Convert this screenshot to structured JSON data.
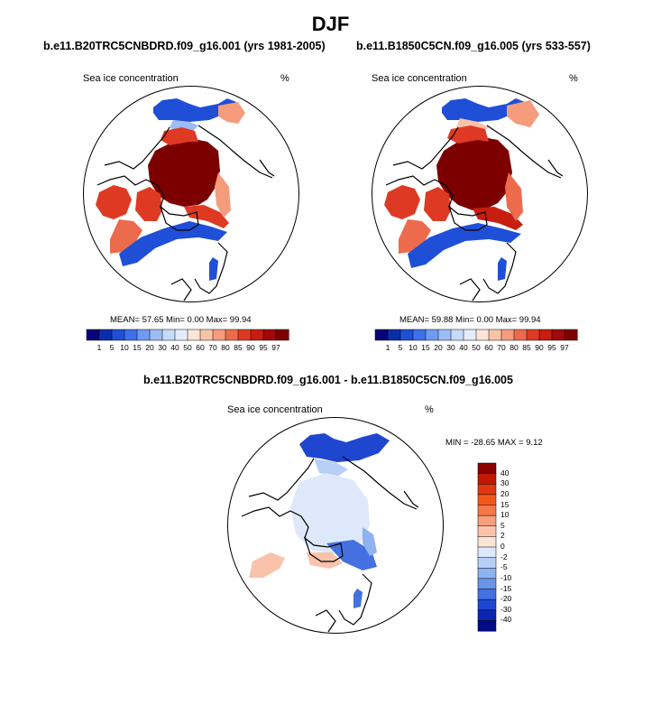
{
  "page": {
    "title": "DJF"
  },
  "panels": [
    {
      "title": "b.e11.B20TRC5CNBDRD.f09_g16.001 (yrs 1981-2005)",
      "variable": "Sea ice concentration",
      "units": "%",
      "stats": "MEAN=  57.65  Min=   0.00  Max=  99.94"
    },
    {
      "title": "b.e11.B1850C5CN.f09_g16.005 (yrs 533-557)",
      "variable": "Sea ice concentration",
      "units": "%",
      "stats": "MEAN=  59.88  Min=   0.00  Max=  99.94"
    },
    {
      "title": "b.e11.B20TRC5CNBDRD.f09_g16.001 - b.e11.B1850C5CN.f09_g16.005",
      "variable": "Sea ice concentration",
      "units": "%",
      "stats": "MIN = -28.65 MAX =   9.12"
    }
  ],
  "chart_data": [
    {
      "type": "heatmap",
      "projection": "north polar stereographic",
      "title": "b.e11.B20TRC5CNBDRD.f09_g16.001 (yrs 1981-2005)",
      "variable": "Sea ice concentration",
      "units": "%",
      "mean": 57.65,
      "min": 0.0,
      "max": 99.94,
      "colorbar_levels": [
        "1",
        "5",
        "10",
        "15",
        "20",
        "30",
        "40",
        "50",
        "60",
        "70",
        "80",
        "85",
        "90",
        "95",
        "97"
      ],
      "colorbar_colors": [
        "#08047a",
        "#0a2ea8",
        "#1f4fd6",
        "#3f70ea",
        "#6f9af2",
        "#9cbcf6",
        "#c6dafa",
        "#e3edfc",
        "#fde5d8",
        "#f9c3a8",
        "#f49c7c",
        "#ec6b4c",
        "#de3a23",
        "#c71e10",
        "#a10808",
        "#7d0000"
      ]
    },
    {
      "type": "heatmap",
      "projection": "north polar stereographic",
      "title": "b.e11.B1850C5CN.f09_g16.005 (yrs 533-557)",
      "variable": "Sea ice concentration",
      "units": "%",
      "mean": 59.88,
      "min": 0.0,
      "max": 99.94,
      "colorbar_levels": [
        "1",
        "5",
        "10",
        "15",
        "20",
        "30",
        "40",
        "50",
        "60",
        "70",
        "80",
        "85",
        "90",
        "95",
        "97"
      ],
      "colorbar_colors": [
        "#08047a",
        "#0a2ea8",
        "#1f4fd6",
        "#3f70ea",
        "#6f9af2",
        "#9cbcf6",
        "#c6dafa",
        "#e3edfc",
        "#fde5d8",
        "#f9c3a8",
        "#f49c7c",
        "#ec6b4c",
        "#de3a23",
        "#c71e10",
        "#a10808",
        "#7d0000"
      ]
    },
    {
      "type": "heatmap",
      "projection": "north polar stereographic",
      "title": "b.e11.B20TRC5CNBDRD.f09_g16.001 - b.e11.B1850C5CN.f09_g16.005",
      "variable": "Sea ice concentration (difference)",
      "units": "%",
      "min": -28.65,
      "max": 9.12,
      "colorbar_levels": [
        "40",
        "30",
        "20",
        "15",
        "10",
        "5",
        "2",
        "0",
        "-2",
        "-5",
        "-10",
        "-15",
        "-20",
        "-30",
        "-40"
      ],
      "colorbar_colors": [
        "#8b0000",
        "#c01a06",
        "#e0380f",
        "#f2581d",
        "#f5784a",
        "#f79e7c",
        "#f9c3ab",
        "#fbe3d6",
        "#dde9fb",
        "#b7cff6",
        "#8fb2f0",
        "#6a93ea",
        "#4470e0",
        "#1f46cf",
        "#0c25b0",
        "#020a84"
      ]
    }
  ]
}
